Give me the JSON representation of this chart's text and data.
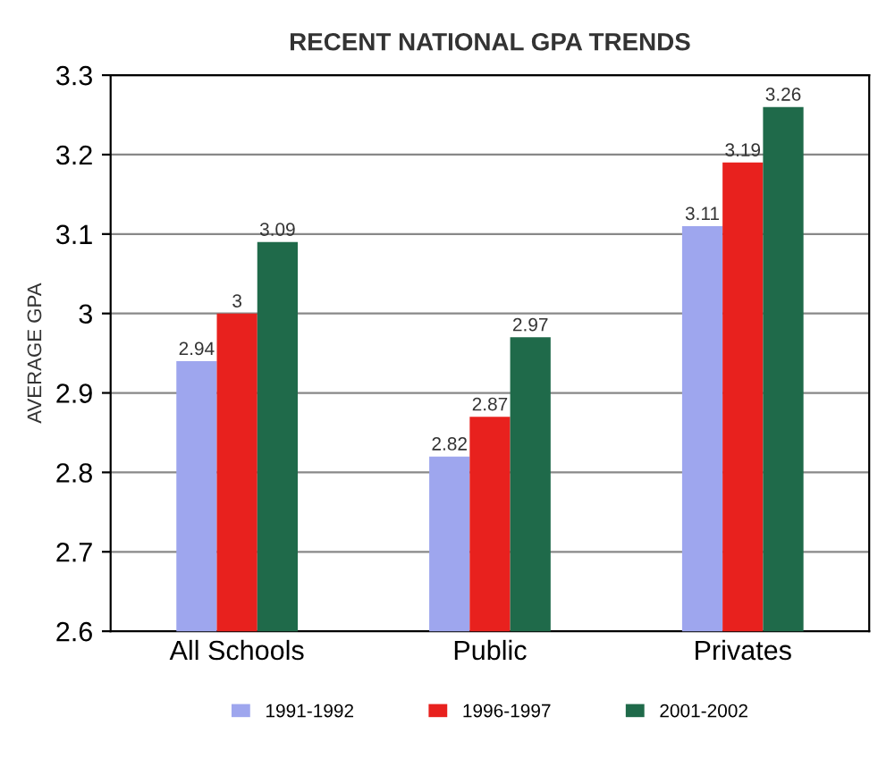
{
  "chart_data": {
    "type": "bar",
    "title": "RECENT NATIONAL GPA TRENDS",
    "ylabel": "AVERAGE GPA",
    "categories": [
      "All Schools",
      "Public",
      "Privates"
    ],
    "series": [
      {
        "name": "1991-1992",
        "color": "#9ea6ee",
        "values": [
          2.94,
          2.82,
          3.11
        ]
      },
      {
        "name": "1996-1997",
        "color": "#e8211e",
        "values": [
          3,
          2.87,
          3.19
        ]
      },
      {
        "name": "2001-2002",
        "color": "#1f6a4a",
        "values": [
          3.09,
          2.97,
          3.26
        ]
      }
    ],
    "ylim": [
      2.6,
      3.3
    ],
    "yticks": [
      2.6,
      2.7,
      2.8,
      2.9,
      3,
      3.1,
      3.2,
      3.3
    ],
    "grid": "y",
    "legend": "bottom",
    "data_labels": true
  }
}
